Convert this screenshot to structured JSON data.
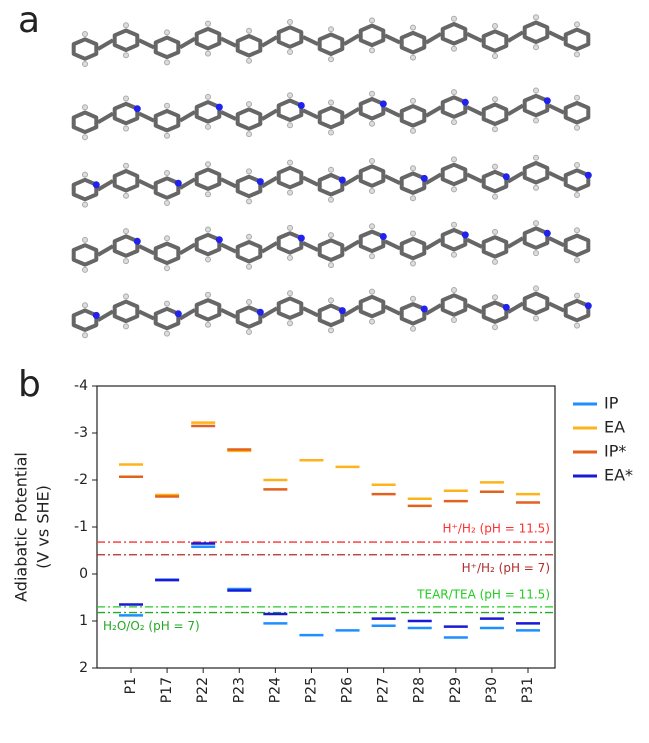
{
  "chart_data": {
    "type": "level",
    "panel_labels": [
      "a",
      "b"
    ],
    "ylabel": [
      "Adiabatic Potential",
      "(V vs SHE)"
    ],
    "categories": [
      "P1",
      "P17",
      "P22",
      "P23",
      "P24",
      "P25",
      "P26",
      "P27",
      "P28",
      "P29",
      "P30",
      "P31"
    ],
    "ylim": [
      -4,
      2
    ],
    "yticks": [
      -4,
      -3,
      -2,
      -1,
      0,
      1,
      2
    ],
    "y_inverted": true,
    "series": [
      {
        "name": "IP",
        "color": "#1e8fff",
        "values": [
          0.88,
          0.12,
          -0.58,
          0.32,
          1.05,
          1.3,
          1.2,
          1.1,
          1.15,
          1.35,
          1.15,
          1.2
        ]
      },
      {
        "name": "EA",
        "color": "#ffb31a",
        "values": [
          -2.33,
          -1.68,
          -3.22,
          -2.62,
          -2.0,
          -2.42,
          -2.28,
          -1.9,
          -1.6,
          -1.77,
          -1.95,
          -1.7
        ]
      },
      {
        "name": "IP*",
        "color": "#e0621e",
        "values": [
          -2.07,
          -1.65,
          -3.15,
          -2.65,
          -1.8,
          null,
          null,
          -1.7,
          -1.45,
          -1.55,
          -1.75,
          -1.52
        ]
      },
      {
        "name": "EA*",
        "color": "#1a1ad6",
        "values": [
          0.65,
          0.13,
          -0.65,
          0.35,
          0.85,
          null,
          null,
          0.95,
          1.0,
          1.12,
          0.95,
          1.05
        ]
      }
    ],
    "reference_lines": [
      {
        "label": "H⁺/H₂ (pH = 11.5)",
        "value": -0.68,
        "color": "#ff3030"
      },
      {
        "label": "H⁺/H₂ (pH = 7)",
        "value": -0.41,
        "color": "#b52a2a"
      },
      {
        "label": "TEAR/TEA (pH = 11.5)",
        "value": 0.7,
        "color": "#22cc22"
      },
      {
        "label": "H₂O/O₂ (pH = 7)",
        "value": 0.82,
        "color": "#22aa22"
      }
    ]
  }
}
